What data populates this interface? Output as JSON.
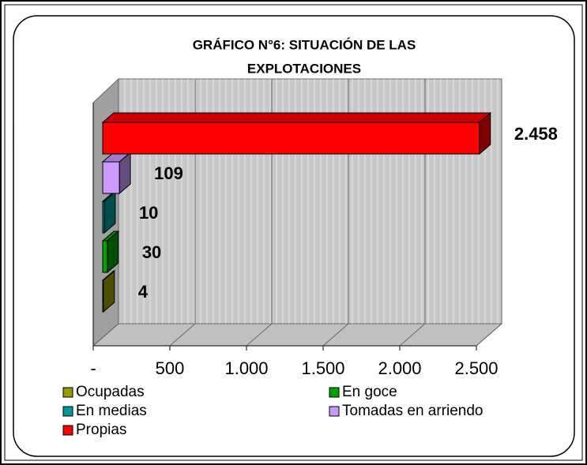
{
  "chart_data": {
    "type": "bar",
    "orientation": "horizontal",
    "title": [
      "GRÁFICO N°6:  SITUACIÓN DE LAS",
      "EXPLOTACIONES"
    ],
    "series": [
      {
        "name": "Ocupadas",
        "color": "#999900",
        "values": [
          4
        ]
      },
      {
        "name": "En goce",
        "color": "#00a000",
        "values": [
          30
        ]
      },
      {
        "name": "En medias",
        "color": "#009999",
        "values": [
          10
        ]
      },
      {
        "name": "Tomadas en arriendo",
        "color": "#cc99ff",
        "values": [
          109
        ]
      },
      {
        "name": "Propias",
        "color": "#ff0000",
        "values": [
          2458
        ],
        "value_labels": [
          "2.458"
        ]
      }
    ],
    "xlim": [
      0,
      2500
    ],
    "xticks": [
      {
        "value": 0,
        "label": "-"
      },
      500,
      {
        "value": 1000,
        "label": "1.000"
      },
      {
        "value": 1500,
        "label": "1.500"
      },
      {
        "value": 2000,
        "label": "2.000"
      },
      {
        "value": 2500,
        "label": "2.500"
      }
    ],
    "grid": true,
    "legend": "bottom"
  }
}
